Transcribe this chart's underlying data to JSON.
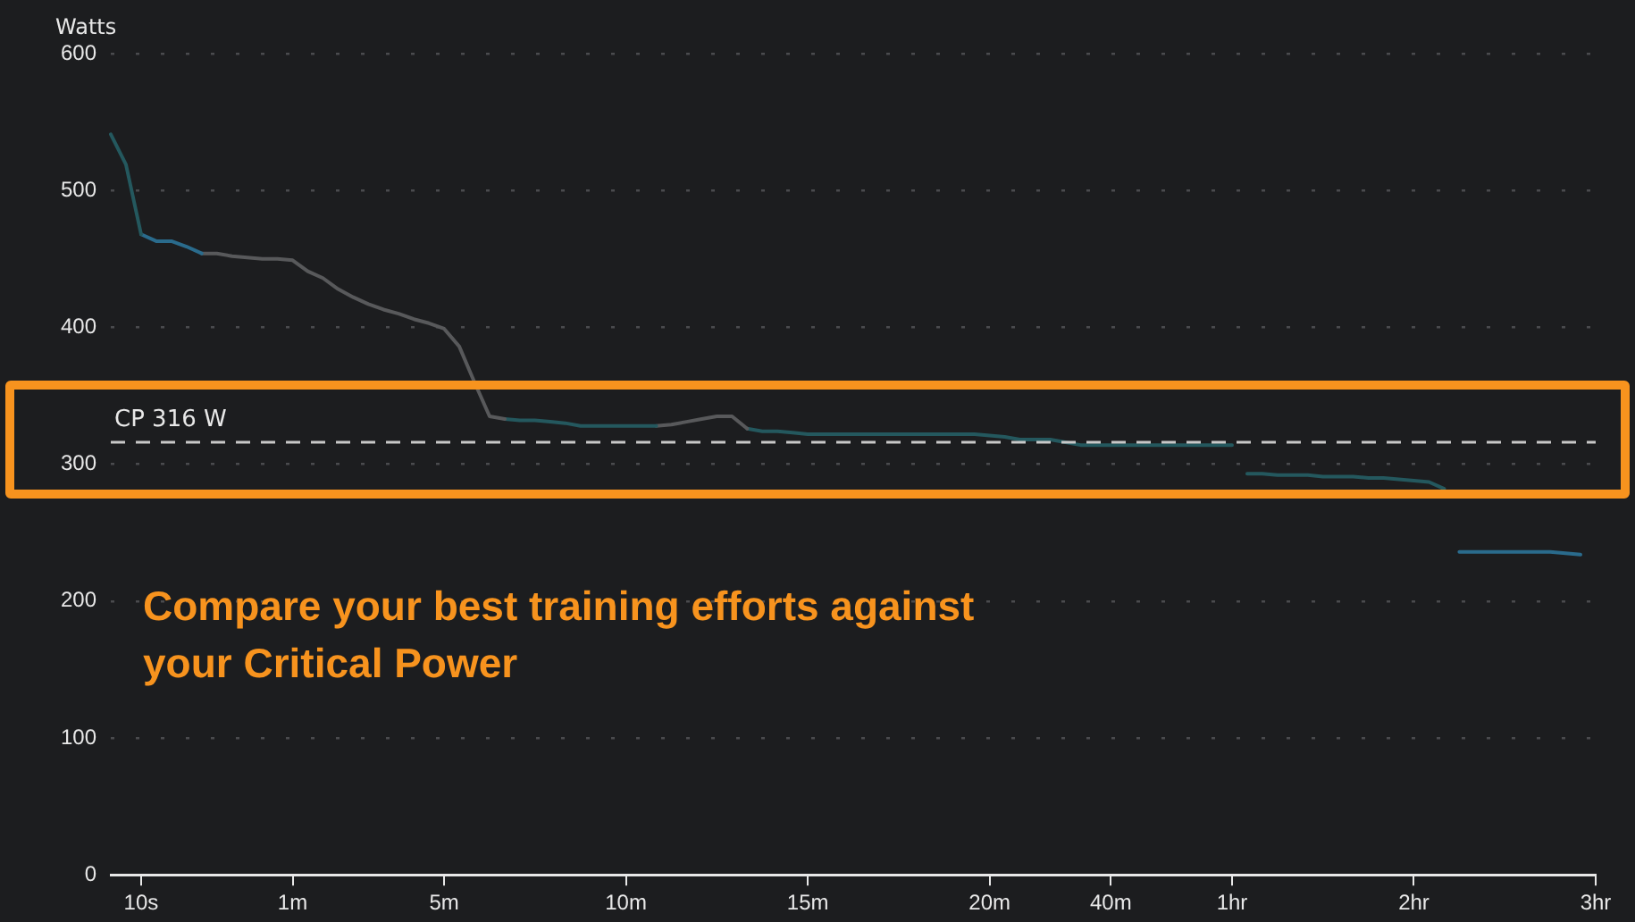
{
  "chart_data": {
    "type": "line",
    "ylabel": "Watts",
    "ylim": [
      0,
      600
    ],
    "categories": [
      null,
      null,
      "10s",
      null,
      null,
      null,
      null,
      null,
      null,
      null,
      null,
      null,
      "1m",
      null,
      null,
      null,
      null,
      null,
      null,
      null,
      null,
      null,
      "5m",
      null,
      null,
      null,
      null,
      null,
      null,
      null,
      null,
      null,
      null,
      null,
      "10m",
      null,
      null,
      null,
      null,
      null,
      null,
      null,
      null,
      null,
      null,
      null,
      "15m",
      null,
      null,
      null,
      null,
      null,
      null,
      null,
      null,
      null,
      null,
      null,
      "20m",
      null,
      null,
      null,
      null,
      null,
      null,
      null,
      "40m",
      null,
      null,
      null,
      null,
      null,
      null,
      null,
      "1hr",
      null,
      null,
      null,
      null,
      null,
      null,
      null,
      null,
      null,
      null,
      null,
      "2hr",
      null,
      null,
      null,
      null,
      null,
      null,
      null,
      null,
      null,
      null,
      null,
      "3hr"
    ],
    "yticks": [
      0,
      100,
      200,
      300,
      400,
      500,
      600
    ],
    "series": [
      {
        "color": "#24585e",
        "values": [
          541,
          519,
          468,
          null,
          null,
          null,
          null,
          null,
          null,
          null,
          null,
          null,
          null,
          null,
          null,
          null,
          null,
          null,
          null,
          null,
          null,
          null,
          null,
          null,
          null,
          null,
          null,
          null,
          null,
          null,
          null,
          null,
          null,
          null,
          null,
          null,
          null,
          null,
          null,
          null,
          null,
          null,
          null,
          null,
          null,
          null,
          null,
          null,
          null,
          null,
          null,
          null,
          null,
          null,
          null,
          null,
          null,
          null,
          null,
          null,
          null,
          null,
          null,
          null,
          null,
          null,
          null,
          null,
          null,
          null,
          null,
          null,
          null,
          null,
          null,
          null,
          null,
          null,
          null,
          null,
          null,
          null,
          null,
          null,
          null,
          null,
          null,
          null,
          null,
          null,
          null,
          null,
          null,
          null,
          null,
          null,
          null,
          null,
          null
        ]
      },
      {
        "color": "#2a6b8c",
        "values": [
          null,
          null,
          468,
          463,
          463,
          459,
          454,
          null,
          null,
          null,
          null,
          null,
          null,
          null,
          null,
          null,
          null,
          null,
          null,
          null,
          null,
          null,
          null,
          null,
          null,
          null,
          null,
          null,
          null,
          null,
          null,
          null,
          null,
          null,
          null,
          null,
          null,
          null,
          null,
          null,
          null,
          null,
          null,
          null,
          null,
          null,
          null,
          null,
          null,
          null,
          null,
          null,
          null,
          null,
          null,
          null,
          null,
          null,
          null,
          null,
          null,
          null,
          null,
          null,
          null,
          null,
          null,
          null,
          null,
          null,
          null,
          null,
          null,
          null,
          null,
          null,
          null,
          null,
          null,
          null,
          null,
          null,
          null,
          null,
          null,
          null,
          null,
          null,
          null,
          null,
          null,
          null,
          null,
          null,
          null,
          null,
          null,
          null,
          null
        ]
      },
      {
        "color": "#58595b",
        "values": [
          null,
          null,
          null,
          null,
          null,
          null,
          454,
          454,
          452,
          451,
          450,
          450,
          449,
          441,
          436,
          428,
          422,
          417,
          413,
          410,
          406,
          403,
          399,
          386,
          360,
          335,
          333,
          null,
          null,
          null,
          null,
          null,
          null,
          null,
          null,
          null,
          null,
          null,
          null,
          null,
          null,
          null,
          null,
          null,
          null,
          null,
          null,
          null,
          null,
          null,
          null,
          null,
          null,
          null,
          null,
          null,
          null,
          null,
          null,
          null,
          null,
          null,
          null,
          null,
          null,
          null,
          null,
          null,
          null,
          null,
          null,
          null,
          null,
          null,
          null,
          null,
          null,
          null,
          null,
          null,
          null,
          null,
          null,
          null,
          null,
          null,
          null,
          null,
          null,
          null,
          null,
          null,
          null,
          null,
          null,
          null,
          null,
          null,
          null
        ]
      },
      {
        "color": "#24585e",
        "values": [
          null,
          null,
          null,
          null,
          null,
          null,
          null,
          null,
          null,
          null,
          null,
          null,
          null,
          null,
          null,
          null,
          null,
          null,
          null,
          null,
          null,
          null,
          null,
          null,
          null,
          null,
          333,
          332,
          332,
          331,
          330,
          328,
          328,
          328,
          328,
          328,
          328,
          null,
          null,
          null,
          null,
          null,
          null,
          null,
          null,
          null,
          null,
          null,
          null,
          null,
          null,
          null,
          null,
          null,
          null,
          null,
          null,
          null,
          null,
          null,
          null,
          null,
          null,
          null,
          null,
          null,
          null,
          null,
          null,
          null,
          null,
          null,
          null,
          null,
          null,
          null,
          null,
          null,
          null,
          null,
          null,
          null,
          null,
          null,
          null,
          null,
          null,
          null,
          null,
          null,
          null,
          null,
          null,
          null,
          null,
          null,
          null,
          null,
          null
        ]
      },
      {
        "color": "#58595b",
        "values": [
          null,
          null,
          null,
          null,
          null,
          null,
          null,
          null,
          null,
          null,
          null,
          null,
          null,
          null,
          null,
          null,
          null,
          null,
          null,
          null,
          null,
          null,
          null,
          null,
          null,
          null,
          null,
          null,
          null,
          null,
          null,
          null,
          null,
          null,
          null,
          null,
          328,
          329,
          331,
          333,
          335,
          335,
          326,
          null,
          null,
          null,
          null,
          null,
          null,
          null,
          null,
          null,
          null,
          null,
          null,
          null,
          null,
          null,
          null,
          null,
          null,
          null,
          null,
          null,
          null,
          null,
          null,
          null,
          null,
          null,
          null,
          null,
          null,
          null,
          null,
          null,
          null,
          null,
          null,
          null,
          null,
          null,
          null,
          null,
          null,
          null,
          null,
          null,
          null,
          null,
          null,
          null,
          null,
          null,
          null,
          null,
          null,
          null,
          null
        ]
      },
      {
        "color": "#24585e",
        "values": [
          null,
          null,
          null,
          null,
          null,
          null,
          null,
          null,
          null,
          null,
          null,
          null,
          null,
          null,
          null,
          null,
          null,
          null,
          null,
          null,
          null,
          null,
          null,
          null,
          null,
          null,
          null,
          null,
          null,
          null,
          null,
          null,
          null,
          null,
          null,
          null,
          null,
          null,
          null,
          null,
          null,
          null,
          326,
          324,
          324,
          323,
          322,
          322,
          322,
          322,
          322,
          322,
          322,
          322,
          322,
          322,
          322,
          322,
          321,
          320,
          318,
          318,
          318,
          316,
          314,
          314,
          314,
          314,
          314,
          314,
          314,
          314,
          314,
          314,
          314,
          null,
          null,
          null,
          null,
          null,
          null,
          null,
          null,
          null,
          null,
          null,
          null,
          null,
          null,
          null,
          null,
          null,
          null,
          null,
          null,
          null,
          null,
          null,
          null
        ]
      },
      {
        "color": "#24585e",
        "values": [
          null,
          null,
          null,
          null,
          null,
          null,
          null,
          null,
          null,
          null,
          null,
          null,
          null,
          null,
          null,
          null,
          null,
          null,
          null,
          null,
          null,
          null,
          null,
          null,
          null,
          null,
          null,
          null,
          null,
          null,
          null,
          null,
          null,
          null,
          null,
          null,
          null,
          null,
          null,
          null,
          null,
          null,
          null,
          null,
          null,
          null,
          null,
          null,
          null,
          null,
          null,
          null,
          null,
          null,
          null,
          null,
          null,
          null,
          null,
          null,
          null,
          null,
          null,
          null,
          null,
          null,
          null,
          null,
          null,
          null,
          null,
          null,
          null,
          null,
          null,
          293,
          293,
          292,
          292,
          292,
          291,
          291,
          291,
          290,
          290,
          289,
          288,
          287,
          282,
          null,
          null,
          null,
          null,
          null,
          null,
          null,
          null,
          null,
          null
        ]
      },
      {
        "color": "#2a6b8c",
        "values": [
          null,
          null,
          null,
          null,
          null,
          null,
          null,
          null,
          null,
          null,
          null,
          null,
          null,
          null,
          null,
          null,
          null,
          null,
          null,
          null,
          null,
          null,
          null,
          null,
          null,
          null,
          null,
          null,
          null,
          null,
          null,
          null,
          null,
          null,
          null,
          null,
          null,
          null,
          null,
          null,
          null,
          null,
          null,
          null,
          null,
          null,
          null,
          null,
          null,
          null,
          null,
          null,
          null,
          null,
          null,
          null,
          null,
          null,
          null,
          null,
          null,
          null,
          null,
          null,
          null,
          null,
          null,
          null,
          null,
          null,
          null,
          null,
          null,
          null,
          null,
          null,
          null,
          null,
          null,
          null,
          null,
          null,
          null,
          null,
          null,
          null,
          null,
          null,
          null,
          236,
          236,
          236,
          236,
          236,
          236,
          236,
          235,
          234,
          null
        ]
      }
    ],
    "ref_lines": [
      {
        "axis": "y",
        "value": 316,
        "label": "CP 316 W",
        "color": "#c8c8c8",
        "line_style": "dashed"
      }
    ],
    "annotations": [
      "Compare your best training efforts against your Critical Power"
    ],
    "grid": "y",
    "legend": false,
    "marker": "none",
    "line_style": "solid"
  }
}
